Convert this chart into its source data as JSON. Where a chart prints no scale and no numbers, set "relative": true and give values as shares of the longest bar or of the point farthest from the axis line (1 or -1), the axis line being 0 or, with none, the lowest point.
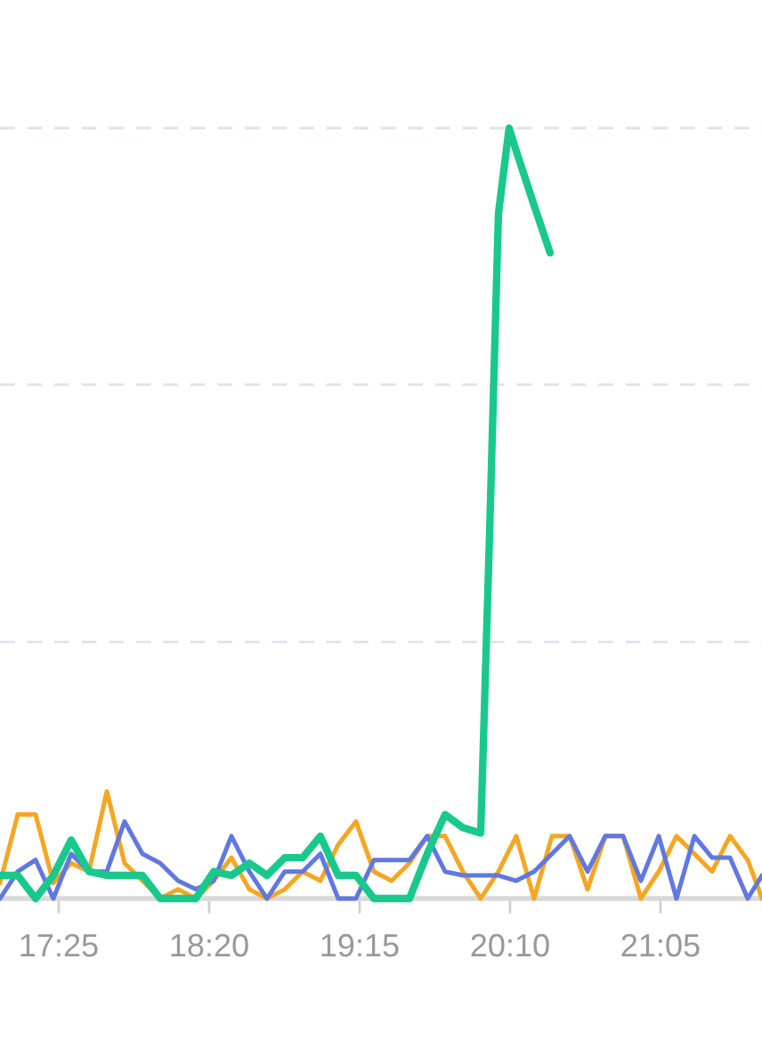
{
  "chart_data": {
    "type": "line",
    "relative": true,
    "ref_lines": [
      {
        "axis": "y",
        "value": 0.333,
        "color": "#dfe4ec",
        "line_style": "dashed"
      },
      {
        "axis": "y",
        "value": 0.667,
        "color": "#dfe4ec",
        "line_style": "dashed"
      },
      {
        "axis": "y",
        "value": 1,
        "color": "#dfe4ec",
        "line_style": "dashed"
      }
    ],
    "marker": "none",
    "line_style": "solid",
    "xlim": [
      17.059,
      21.702
    ],
    "xticks": [
      {
        "value": 17.4167,
        "label": "17:25"
      },
      {
        "value": 18.3333,
        "label": "18:20"
      },
      {
        "value": 19.25,
        "label": "19:15"
      },
      {
        "value": 20.1667,
        "label": "20:10"
      },
      {
        "value": 21.0833,
        "label": "21:05"
      }
    ],
    "x": [
      17.059,
      17.167,
      17.276,
      17.384,
      17.493,
      17.601,
      17.71,
      17.818,
      17.927,
      18.035,
      18.144,
      18.252,
      18.361,
      18.469,
      18.578,
      18.686,
      18.794,
      18.903,
      19.011,
      19.12,
      19.228,
      19.337,
      19.445,
      19.554,
      19.662,
      19.771,
      19.879,
      19.988,
      20.096,
      20.205,
      20.313,
      20.422,
      20.53,
      20.639,
      20.747,
      20.856,
      20.964,
      21.073,
      21.181,
      21.29,
      21.398,
      21.507,
      21.615,
      21.702
    ],
    "series": [
      {
        "color": "#f5a623",
        "values": [
          0.02,
          0.109,
          0.109,
          0.02,
          0.046,
          0.035,
          0.139,
          0.046,
          0.023,
          0,
          0.012,
          0,
          0.023,
          0.053,
          0.012,
          0,
          0.012,
          0.035,
          0.023,
          0.07,
          0.1,
          0.035,
          0.023,
          0.046,
          0.081,
          0.081,
          0.035,
          0,
          0.035,
          0.081,
          0,
          0.081,
          0.081,
          0.012,
          0.081,
          0.081,
          0,
          0.035,
          0.081,
          0.058,
          0.035,
          0.081,
          0.05,
          0
        ]
      },
      {
        "color": "#6078e0",
        "values": [
          0,
          0.035,
          0.05,
          0,
          0.058,
          0.035,
          0.035,
          0.1,
          0.058,
          0.046,
          0.023,
          0.012,
          0.023,
          0.081,
          0.035,
          0,
          0.035,
          0.035,
          0.058,
          0,
          0,
          0.05,
          0.05,
          0.05,
          0.081,
          0.035,
          0.03,
          0.03,
          0.03,
          0.023,
          0.035,
          0.058,
          0.081,
          0.035,
          0.081,
          0.081,
          0.023,
          0.081,
          0,
          0.081,
          0.053,
          0.053,
          0,
          0.03
        ]
      },
      {
        "color": "#19c98c",
        "x": [
          17.059,
          17.167,
          17.276,
          17.384,
          17.493,
          17.601,
          17.71,
          17.818,
          17.927,
          18.035,
          18.144,
          18.252,
          18.361,
          18.469,
          18.578,
          18.686,
          18.794,
          18.903,
          19.011,
          19.12,
          19.228,
          19.337,
          19.445,
          19.554,
          19.662,
          19.771,
          19.879,
          19.988,
          20.042,
          20.096,
          20.161,
          20.205,
          20.313,
          20.411
        ],
        "values": [
          0.03,
          0.03,
          0,
          0.03,
          0.076,
          0.035,
          0.03,
          0.03,
          0.03,
          0,
          0,
          0,
          0.035,
          0.03,
          0.046,
          0.03,
          0.053,
          0.053,
          0.081,
          0.03,
          0.03,
          0,
          0,
          0,
          0.058,
          0.109,
          0.092,
          0.085,
          0.473,
          0.889,
          1,
          0.97,
          0.9,
          0.838
        ]
      }
    ]
  }
}
